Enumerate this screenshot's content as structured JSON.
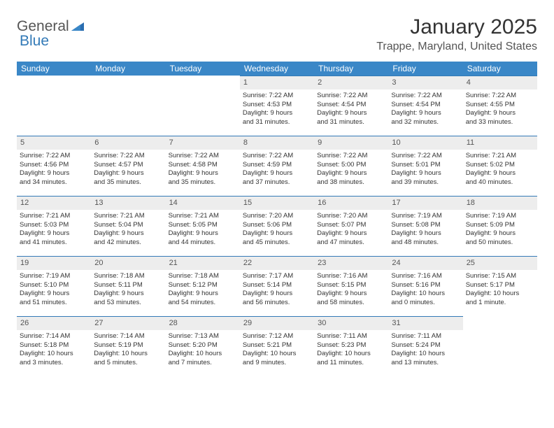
{
  "logo": {
    "text1": "General",
    "text2": "Blue"
  },
  "title": "January 2025",
  "location": "Trappe, Maryland, United States",
  "colors": {
    "header_bg": "#3a87c7",
    "header_text": "#ffffff",
    "daynum_bg": "#ededed",
    "daynum_border": "#337ab7",
    "body_text": "#333333",
    "brand_blue": "#337ab7"
  },
  "weekdays": [
    "Sunday",
    "Monday",
    "Tuesday",
    "Wednesday",
    "Thursday",
    "Friday",
    "Saturday"
  ],
  "weeks": [
    [
      null,
      null,
      null,
      {
        "n": "1",
        "sr": "Sunrise: 7:22 AM",
        "ss": "Sunset: 4:53 PM",
        "dl1": "Daylight: 9 hours",
        "dl2": "and 31 minutes."
      },
      {
        "n": "2",
        "sr": "Sunrise: 7:22 AM",
        "ss": "Sunset: 4:54 PM",
        "dl1": "Daylight: 9 hours",
        "dl2": "and 31 minutes."
      },
      {
        "n": "3",
        "sr": "Sunrise: 7:22 AM",
        "ss": "Sunset: 4:54 PM",
        "dl1": "Daylight: 9 hours",
        "dl2": "and 32 minutes."
      },
      {
        "n": "4",
        "sr": "Sunrise: 7:22 AM",
        "ss": "Sunset: 4:55 PM",
        "dl1": "Daylight: 9 hours",
        "dl2": "and 33 minutes."
      }
    ],
    [
      {
        "n": "5",
        "sr": "Sunrise: 7:22 AM",
        "ss": "Sunset: 4:56 PM",
        "dl1": "Daylight: 9 hours",
        "dl2": "and 34 minutes."
      },
      {
        "n": "6",
        "sr": "Sunrise: 7:22 AM",
        "ss": "Sunset: 4:57 PM",
        "dl1": "Daylight: 9 hours",
        "dl2": "and 35 minutes."
      },
      {
        "n": "7",
        "sr": "Sunrise: 7:22 AM",
        "ss": "Sunset: 4:58 PM",
        "dl1": "Daylight: 9 hours",
        "dl2": "and 35 minutes."
      },
      {
        "n": "8",
        "sr": "Sunrise: 7:22 AM",
        "ss": "Sunset: 4:59 PM",
        "dl1": "Daylight: 9 hours",
        "dl2": "and 37 minutes."
      },
      {
        "n": "9",
        "sr": "Sunrise: 7:22 AM",
        "ss": "Sunset: 5:00 PM",
        "dl1": "Daylight: 9 hours",
        "dl2": "and 38 minutes."
      },
      {
        "n": "10",
        "sr": "Sunrise: 7:22 AM",
        "ss": "Sunset: 5:01 PM",
        "dl1": "Daylight: 9 hours",
        "dl2": "and 39 minutes."
      },
      {
        "n": "11",
        "sr": "Sunrise: 7:21 AM",
        "ss": "Sunset: 5:02 PM",
        "dl1": "Daylight: 9 hours",
        "dl2": "and 40 minutes."
      }
    ],
    [
      {
        "n": "12",
        "sr": "Sunrise: 7:21 AM",
        "ss": "Sunset: 5:03 PM",
        "dl1": "Daylight: 9 hours",
        "dl2": "and 41 minutes."
      },
      {
        "n": "13",
        "sr": "Sunrise: 7:21 AM",
        "ss": "Sunset: 5:04 PM",
        "dl1": "Daylight: 9 hours",
        "dl2": "and 42 minutes."
      },
      {
        "n": "14",
        "sr": "Sunrise: 7:21 AM",
        "ss": "Sunset: 5:05 PM",
        "dl1": "Daylight: 9 hours",
        "dl2": "and 44 minutes."
      },
      {
        "n": "15",
        "sr": "Sunrise: 7:20 AM",
        "ss": "Sunset: 5:06 PM",
        "dl1": "Daylight: 9 hours",
        "dl2": "and 45 minutes."
      },
      {
        "n": "16",
        "sr": "Sunrise: 7:20 AM",
        "ss": "Sunset: 5:07 PM",
        "dl1": "Daylight: 9 hours",
        "dl2": "and 47 minutes."
      },
      {
        "n": "17",
        "sr": "Sunrise: 7:19 AM",
        "ss": "Sunset: 5:08 PM",
        "dl1": "Daylight: 9 hours",
        "dl2": "and 48 minutes."
      },
      {
        "n": "18",
        "sr": "Sunrise: 7:19 AM",
        "ss": "Sunset: 5:09 PM",
        "dl1": "Daylight: 9 hours",
        "dl2": "and 50 minutes."
      }
    ],
    [
      {
        "n": "19",
        "sr": "Sunrise: 7:19 AM",
        "ss": "Sunset: 5:10 PM",
        "dl1": "Daylight: 9 hours",
        "dl2": "and 51 minutes."
      },
      {
        "n": "20",
        "sr": "Sunrise: 7:18 AM",
        "ss": "Sunset: 5:11 PM",
        "dl1": "Daylight: 9 hours",
        "dl2": "and 53 minutes."
      },
      {
        "n": "21",
        "sr": "Sunrise: 7:18 AM",
        "ss": "Sunset: 5:12 PM",
        "dl1": "Daylight: 9 hours",
        "dl2": "and 54 minutes."
      },
      {
        "n": "22",
        "sr": "Sunrise: 7:17 AM",
        "ss": "Sunset: 5:14 PM",
        "dl1": "Daylight: 9 hours",
        "dl2": "and 56 minutes."
      },
      {
        "n": "23",
        "sr": "Sunrise: 7:16 AM",
        "ss": "Sunset: 5:15 PM",
        "dl1": "Daylight: 9 hours",
        "dl2": "and 58 minutes."
      },
      {
        "n": "24",
        "sr": "Sunrise: 7:16 AM",
        "ss": "Sunset: 5:16 PM",
        "dl1": "Daylight: 10 hours",
        "dl2": "and 0 minutes."
      },
      {
        "n": "25",
        "sr": "Sunrise: 7:15 AM",
        "ss": "Sunset: 5:17 PM",
        "dl1": "Daylight: 10 hours",
        "dl2": "and 1 minute."
      }
    ],
    [
      {
        "n": "26",
        "sr": "Sunrise: 7:14 AM",
        "ss": "Sunset: 5:18 PM",
        "dl1": "Daylight: 10 hours",
        "dl2": "and 3 minutes."
      },
      {
        "n": "27",
        "sr": "Sunrise: 7:14 AM",
        "ss": "Sunset: 5:19 PM",
        "dl1": "Daylight: 10 hours",
        "dl2": "and 5 minutes."
      },
      {
        "n": "28",
        "sr": "Sunrise: 7:13 AM",
        "ss": "Sunset: 5:20 PM",
        "dl1": "Daylight: 10 hours",
        "dl2": "and 7 minutes."
      },
      {
        "n": "29",
        "sr": "Sunrise: 7:12 AM",
        "ss": "Sunset: 5:21 PM",
        "dl1": "Daylight: 10 hours",
        "dl2": "and 9 minutes."
      },
      {
        "n": "30",
        "sr": "Sunrise: 7:11 AM",
        "ss": "Sunset: 5:23 PM",
        "dl1": "Daylight: 10 hours",
        "dl2": "and 11 minutes."
      },
      {
        "n": "31",
        "sr": "Sunrise: 7:11 AM",
        "ss": "Sunset: 5:24 PM",
        "dl1": "Daylight: 10 hours",
        "dl2": "and 13 minutes."
      },
      null
    ]
  ]
}
